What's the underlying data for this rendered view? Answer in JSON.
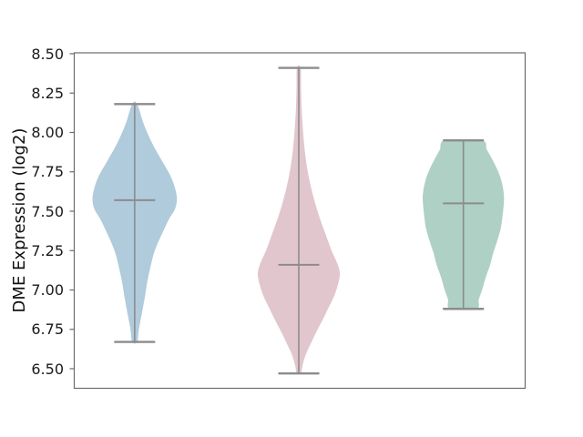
{
  "figure": {
    "background": "#ffffff"
  },
  "chart_data": {
    "type": "violin",
    "title": "",
    "xlabel": "",
    "ylabel": "DME Expression (log2)",
    "ylim": [
      6.37,
      8.51
    ],
    "ytick_values": [
      6.5,
      6.75,
      7.0,
      7.25,
      7.5,
      7.75,
      8.0,
      8.25,
      8.5
    ],
    "ytick_labels": [
      "6.50",
      "6.75",
      "7.00",
      "7.25",
      "7.50",
      "7.75",
      "8.00",
      "8.25",
      "8.50"
    ],
    "xtick_labels": [],
    "grid": false,
    "legend": null,
    "styles": {
      "spine_color": "#6b6b6b",
      "line_color": "#8c8c8c",
      "tick_label_color": "#1a1a1a"
    },
    "series": [
      {
        "name": "group_1",
        "color": "#b0cbdc",
        "x_frac": 0.134,
        "max_halfwidth_frac": 0.093,
        "stats": {
          "min": 6.67,
          "max": 8.18,
          "median": 7.57
        },
        "profile": [
          [
            8.18,
            0.06
          ],
          [
            8.05,
            0.22
          ],
          [
            7.93,
            0.42
          ],
          [
            7.82,
            0.65
          ],
          [
            7.71,
            0.88
          ],
          [
            7.6,
            1.0
          ],
          [
            7.52,
            0.97
          ],
          [
            7.45,
            0.82
          ],
          [
            7.35,
            0.64
          ],
          [
            7.25,
            0.48
          ],
          [
            7.15,
            0.38
          ],
          [
            7.05,
            0.3
          ],
          [
            6.95,
            0.24
          ],
          [
            6.85,
            0.17
          ],
          [
            6.75,
            0.1
          ],
          [
            6.67,
            0.06
          ]
        ]
      },
      {
        "name": "group_2",
        "color": "#e2c6cd",
        "x_frac": 0.498,
        "max_halfwidth_frac": 0.091,
        "stats": {
          "min": 6.47,
          "max": 8.41,
          "median": 7.16
        },
        "profile": [
          [
            8.41,
            0.045
          ],
          [
            8.28,
            0.055
          ],
          [
            8.15,
            0.07
          ],
          [
            8.02,
            0.1
          ],
          [
            7.9,
            0.14
          ],
          [
            7.78,
            0.2
          ],
          [
            7.66,
            0.29
          ],
          [
            7.55,
            0.4
          ],
          [
            7.45,
            0.52
          ],
          [
            7.35,
            0.66
          ],
          [
            7.25,
            0.8
          ],
          [
            7.16,
            0.95
          ],
          [
            7.1,
            1.0
          ],
          [
            7.03,
            0.95
          ],
          [
            6.96,
            0.86
          ],
          [
            6.89,
            0.73
          ],
          [
            6.82,
            0.6
          ],
          [
            6.75,
            0.46
          ],
          [
            6.67,
            0.31
          ],
          [
            6.59,
            0.17
          ],
          [
            6.52,
            0.09
          ],
          [
            6.47,
            0.05
          ]
        ]
      },
      {
        "name": "group_3",
        "color": "#afd0c4",
        "x_frac": 0.863,
        "max_halfwidth_frac": 0.09,
        "stats": {
          "min": 6.88,
          "max": 7.95,
          "median": 7.55
        },
        "profile": [
          [
            7.95,
            0.45
          ],
          [
            7.89,
            0.58
          ],
          [
            7.82,
            0.73
          ],
          [
            7.75,
            0.86
          ],
          [
            7.68,
            0.95
          ],
          [
            7.6,
            1.0
          ],
          [
            7.53,
            0.99
          ],
          [
            7.46,
            0.96
          ],
          [
            7.39,
            0.92
          ],
          [
            7.31,
            0.83
          ],
          [
            7.23,
            0.73
          ],
          [
            7.16,
            0.66
          ],
          [
            7.08,
            0.55
          ],
          [
            7.0,
            0.46
          ],
          [
            6.94,
            0.38
          ],
          [
            6.88,
            0.32
          ]
        ]
      }
    ]
  }
}
